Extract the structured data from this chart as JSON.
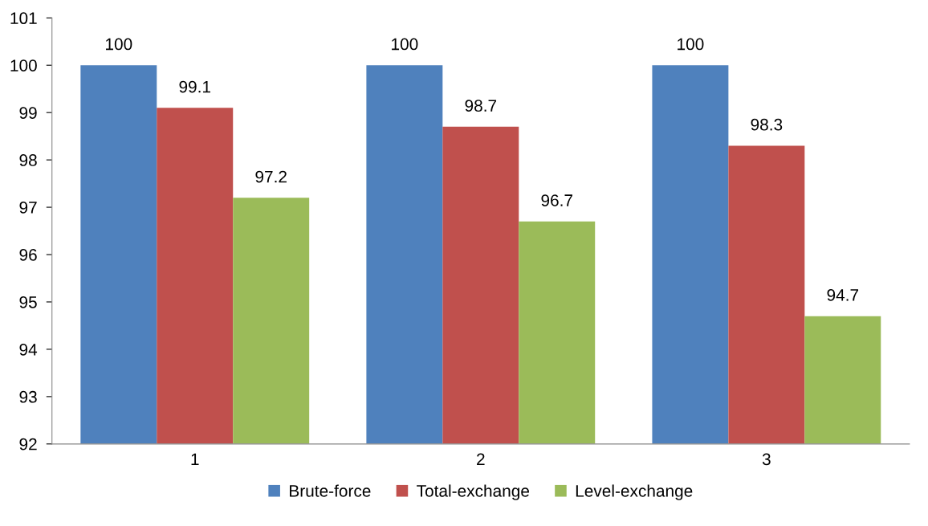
{
  "chart_data": {
    "type": "bar",
    "categories": [
      "1",
      "2",
      "3"
    ],
    "series": [
      {
        "name": "Brute-force",
        "color": "#4f81bd",
        "values": [
          100,
          100,
          100
        ]
      },
      {
        "name": "Total-exchange",
        "color": "#c0504d",
        "values": [
          99.1,
          98.7,
          98.3
        ]
      },
      {
        "name": "Level-exchange",
        "color": "#9bbb59",
        "values": [
          97.2,
          96.7,
          94.7
        ]
      }
    ],
    "ylim": [
      92,
      101
    ],
    "yticks": [
      92,
      93,
      94,
      95,
      96,
      97,
      98,
      99,
      100,
      101
    ],
    "data_labels": true,
    "grid": false,
    "legend": "bottom"
  }
}
